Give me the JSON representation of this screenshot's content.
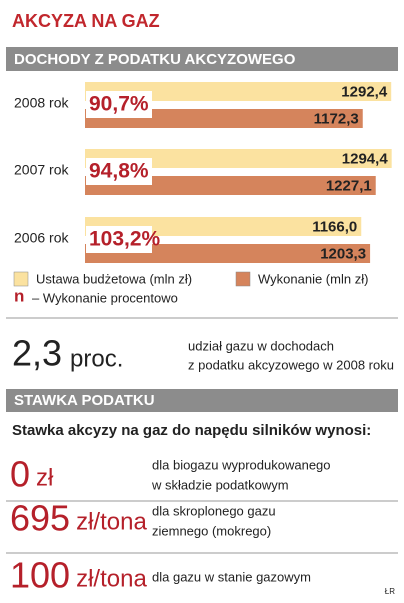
{
  "chart_data": {
    "type": "bar",
    "orientation": "horizontal",
    "title": "AKCYZA NA GAZ",
    "subtitle": "DOCHODY Z PODATKU AKCYZOWEGO",
    "categories": [
      "2008 rok",
      "2007 rok",
      "2006 rok"
    ],
    "series": [
      {
        "name": "Ustawa budżetowa (mln zł)",
        "color": "#fbe2a0",
        "values": [
          1292.4,
          1294.4,
          1166.0
        ],
        "value_labels": [
          "1292,4",
          "1294,4",
          "1166,0"
        ]
      },
      {
        "name": "Wykonanie (mln zł)",
        "color": "#d5845c",
        "values": [
          1172.3,
          1227.1,
          1203.3
        ],
        "value_labels": [
          "1172,3",
          "1227,1",
          "1203,3"
        ]
      }
    ],
    "percent_labels": [
      "90,7%",
      "94,8%",
      "103,2%"
    ],
    "percent_legend": {
      "symbol": "n",
      "text": "– Wykonanie procentowo"
    },
    "xlim": [
      0,
      1300
    ]
  },
  "share": {
    "value": "2,3",
    "unit": "proc.",
    "lines": [
      "udział gazu w dochodach",
      "z podatku akcyzowego w 2008 roku"
    ]
  },
  "rate": {
    "header": "STAWKA PODATKU",
    "intro": "Stawka akcyzy na gaz do napędu silników wynosi:",
    "rows": [
      {
        "amount": "0",
        "unit": "zł",
        "lines": [
          "dla biogazu wyprodukowanego",
          "w składzie podatkowym"
        ]
      },
      {
        "amount": "695",
        "unit": "zł/tona",
        "lines": [
          "dla skroplonego gazu",
          "ziemnego (mokrego)"
        ]
      },
      {
        "amount": "100",
        "unit": "zł/tona",
        "lines": [
          "dla gazu w stanie gazowym"
        ]
      }
    ]
  },
  "credit": "ŁR"
}
